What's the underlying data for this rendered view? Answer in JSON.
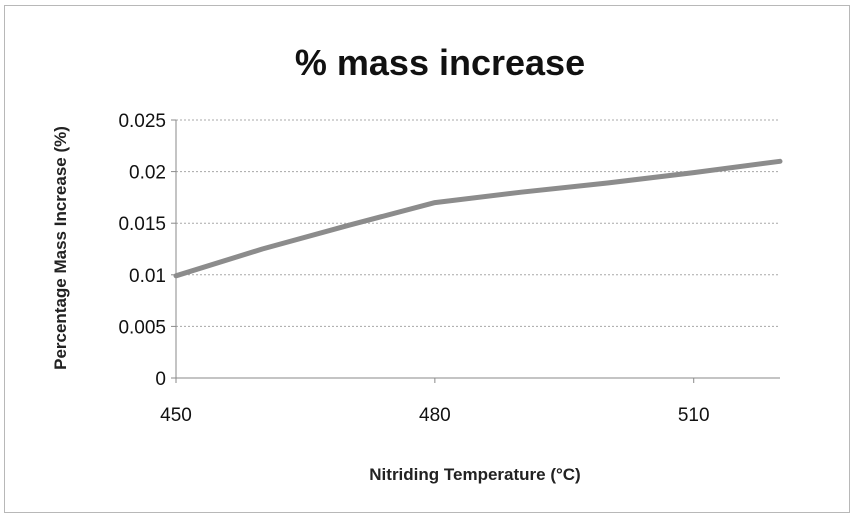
{
  "chart_data": {
    "type": "line",
    "title": "% mass increase",
    "xlabel": "Nitriding Temperature (°C)",
    "ylabel": "Percentage Mass Increase (%)",
    "x_ticks": [
      "450",
      "480",
      "510"
    ],
    "y_ticks": [
      "0",
      "0.005",
      "0.01",
      "0.015",
      "0.02",
      "0.025"
    ],
    "xlim": [
      450,
      520
    ],
    "ylim": [
      0,
      0.025
    ],
    "grid": true,
    "legend": "none",
    "series": [
      {
        "x": [
          450,
          460,
          470,
          480,
          490,
          500,
          510,
          520
        ],
        "values": [
          0.0099,
          0.0125,
          0.0148,
          0.017,
          0.018,
          0.0189,
          0.0199,
          0.021
        ],
        "color": "#8c8c8c"
      }
    ]
  }
}
